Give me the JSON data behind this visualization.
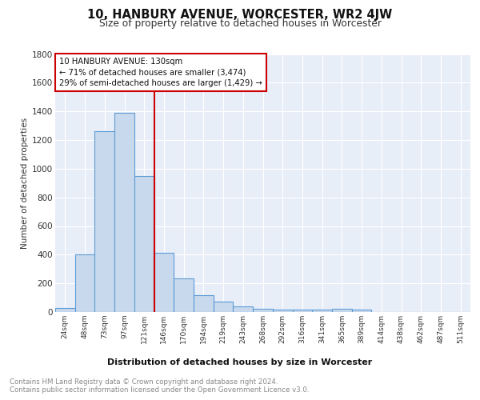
{
  "title": "10, HANBURY AVENUE, WORCESTER, WR2 4JW",
  "subtitle": "Size of property relative to detached houses in Worcester",
  "xlabel": "Distribution of detached houses by size in Worcester",
  "ylabel": "Number of detached properties",
  "categories": [
    "24sqm",
    "48sqm",
    "73sqm",
    "97sqm",
    "121sqm",
    "146sqm",
    "170sqm",
    "194sqm",
    "219sqm",
    "243sqm",
    "268sqm",
    "292sqm",
    "316sqm",
    "341sqm",
    "365sqm",
    "389sqm",
    "414sqm",
    "438sqm",
    "462sqm",
    "487sqm",
    "511sqm"
  ],
  "values": [
    30,
    400,
    1260,
    1390,
    950,
    415,
    235,
    115,
    70,
    38,
    20,
    15,
    15,
    15,
    20,
    15,
    0,
    0,
    0,
    0,
    0
  ],
  "bar_color": "#c8d9ed",
  "bar_edge_color": "#5b9bd5",
  "vline_x": 4.5,
  "vline_color": "#cc0000",
  "annotation_text": "10 HANBURY AVENUE: 130sqm\n← 71% of detached houses are smaller (3,474)\n29% of semi-detached houses are larger (1,429) →",
  "annotation_box_color": "#ffffff",
  "annotation_box_edge": "#cc0000",
  "ylim": [
    0,
    1800
  ],
  "yticks": [
    0,
    200,
    400,
    600,
    800,
    1000,
    1200,
    1400,
    1600,
    1800
  ],
  "background_color": "#e8eef8",
  "grid_color": "#ffffff",
  "footer_line1": "Contains HM Land Registry data © Crown copyright and database right 2024.",
  "footer_line2": "Contains public sector information licensed under the Open Government Licence v3.0."
}
